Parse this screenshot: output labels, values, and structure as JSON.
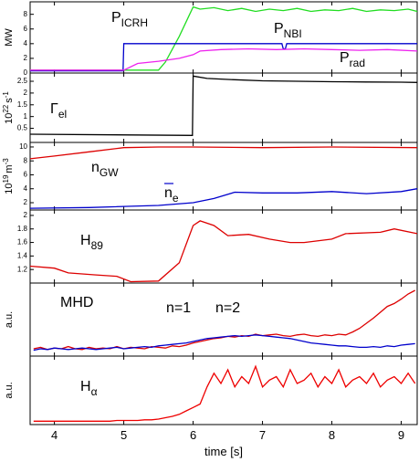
{
  "chart_data": [
    {
      "type": "line",
      "xlim": [
        3.65,
        9.23
      ],
      "ylim": [
        0,
        9.7
      ],
      "yticks": [
        0,
        2,
        4,
        6,
        8
      ],
      "ylabel": [
        {
          "text": "MW"
        }
      ],
      "series": [
        {
          "name": "P",
          "name_sub": "ICRH",
          "color": "#22dd22",
          "x": [
            3.65,
            5.5,
            5.6,
            5.8,
            6.0,
            6.1,
            6.3,
            6.5,
            6.7,
            6.9,
            7.1,
            7.3,
            7.5,
            7.7,
            7.9,
            8.1,
            8.3,
            8.5,
            8.7,
            8.9,
            9.1,
            9.23
          ],
          "values": [
            0.4,
            0.4,
            1.5,
            5,
            9.0,
            8.7,
            8.9,
            8.5,
            8.8,
            8.4,
            8.7,
            8.5,
            8.8,
            8.4,
            8.6,
            8.5,
            8.8,
            8.4,
            8.6,
            8.5,
            8.7,
            8.4
          ]
        },
        {
          "name": "P",
          "name_sub": "NBI",
          "color": "#0000cc",
          "x": [
            3.65,
            4.99,
            5.0,
            7.28,
            7.3,
            7.33,
            7.35,
            9.23
          ],
          "values": [
            0.3,
            0.3,
            4,
            4,
            3.3,
            3.3,
            4,
            4
          ]
        },
        {
          "name": "P",
          "name_sub": "rad",
          "color": "#ee22ee",
          "x": [
            3.65,
            5.0,
            5.2,
            5.5,
            5.8,
            6.0,
            6.1,
            6.4,
            6.8,
            7.2,
            7.6,
            8.0,
            8.4,
            8.8,
            9.23
          ],
          "values": [
            0.4,
            0.4,
            1.3,
            1.6,
            2.0,
            2.5,
            3.0,
            3.2,
            3.3,
            3.2,
            3.3,
            3.2,
            3.1,
            3.2,
            3.0
          ]
        }
      ]
    },
    {
      "type": "line",
      "xlim": [
        3.65,
        9.23
      ],
      "ylim": [
        -0.1,
        2.85
      ],
      "yticks": [
        0.5,
        1,
        1.5,
        2,
        2.5
      ],
      "ylabel": [
        {
          "text": "10"
        },
        {
          "text": "22",
          "shift": "sup"
        },
        {
          "text": "s"
        },
        {
          "text": "-1",
          "shift": "sup"
        }
      ],
      "series": [
        {
          "name": "Γ",
          "name_sub": "el",
          "color": "#000000",
          "x": [
            3.65,
            5.99,
            6.0,
            6.2,
            6.5,
            7.0,
            7.5,
            8.0,
            8.5,
            9.0,
            9.23
          ],
          "values": [
            0.25,
            0.2,
            2.72,
            2.62,
            2.58,
            2.52,
            2.5,
            2.48,
            2.47,
            2.46,
            2.45
          ]
        }
      ]
    },
    {
      "type": "line",
      "xlim": [
        3.65,
        9.23
      ],
      "ylim": [
        0.95,
        10.65
      ],
      "yticks": [
        2,
        4,
        6,
        8,
        10
      ],
      "ylabel": [
        {
          "text": "10"
        },
        {
          "text": "19",
          "shift": "sup"
        },
        {
          "text": "m"
        },
        {
          "text": "-3",
          "shift": "sup"
        }
      ],
      "series": [
        {
          "name": "n",
          "name_sub": "GW",
          "color": "#dd0000",
          "x": [
            3.65,
            4.0,
            4.5,
            5.0,
            5.5,
            6.0,
            7.0,
            8.0,
            9.23
          ],
          "values": [
            8.3,
            8.7,
            9.3,
            9.9,
            10.0,
            10.0,
            9.9,
            10.0,
            9.9
          ]
        },
        {
          "name": "n",
          "name_sub": "e",
          "overline": true,
          "color": "#0000cc",
          "x": [
            3.65,
            4.5,
            5.5,
            6.0,
            6.3,
            6.6,
            7.0,
            7.5,
            8.0,
            8.5,
            9.0,
            9.23
          ],
          "values": [
            1.2,
            1.3,
            1.6,
            2.0,
            2.6,
            3.5,
            3.4,
            3.4,
            3.6,
            3.3,
            3.6,
            4.0
          ]
        }
      ]
    },
    {
      "type": "line",
      "xlim": [
        3.65,
        9.23
      ],
      "ylim": [
        1.0,
        2.08
      ],
      "yticks": [
        1.2,
        1.4,
        1.6,
        1.8,
        2
      ],
      "series": [
        {
          "name": "H",
          "name_sub": "89",
          "color": "#dd0000",
          "x": [
            3.65,
            4.0,
            4.2,
            4.6,
            4.9,
            5.1,
            5.5,
            5.8,
            6.0,
            6.1,
            6.3,
            6.5,
            6.8,
            7.1,
            7.4,
            7.6,
            8.0,
            8.2,
            8.7,
            8.9,
            9.23
          ],
          "values": [
            1.25,
            1.22,
            1.15,
            1.12,
            1.1,
            1.02,
            1.03,
            1.3,
            1.85,
            1.92,
            1.85,
            1.7,
            1.72,
            1.65,
            1.6,
            1.6,
            1.65,
            1.73,
            1.75,
            1.8,
            1.73
          ]
        }
      ]
    },
    {
      "type": "line",
      "xlim": [
        3.65,
        9.23
      ],
      "ylim": [
        0,
        1
      ],
      "annotation": "MHD",
      "ylabel": [
        {
          "text": "a.u."
        }
      ],
      "series": [
        {
          "name": "n=1",
          "color": "#dd0000",
          "x": [
            3.7,
            3.8,
            3.9,
            4,
            4.1,
            4.2,
            4.3,
            4.4,
            4.5,
            4.6,
            4.7,
            4.8,
            4.9,
            5,
            5.1,
            5.2,
            5.3,
            5.4,
            5.5,
            5.6,
            5.7,
            5.8,
            5.9,
            6,
            6.1,
            6.2,
            6.3,
            6.4,
            6.5,
            6.6,
            6.7,
            6.8,
            6.9,
            7,
            7.1,
            7.2,
            7.3,
            7.4,
            7.5,
            7.6,
            7.7,
            7.8,
            7.9,
            8,
            8.1,
            8.2,
            8.3,
            8.4,
            8.5,
            8.6,
            8.7,
            8.8,
            8.9,
            9,
            9.1,
            9.2
          ],
          "values": [
            0.1,
            0.12,
            0.09,
            0.11,
            0.1,
            0.13,
            0.1,
            0.09,
            0.12,
            0.1,
            0.11,
            0.1,
            0.13,
            0.1,
            0.12,
            0.11,
            0.1,
            0.13,
            0.12,
            0.11,
            0.14,
            0.13,
            0.15,
            0.18,
            0.2,
            0.22,
            0.24,
            0.25,
            0.27,
            0.26,
            0.28,
            0.27,
            0.3,
            0.28,
            0.29,
            0.3,
            0.28,
            0.27,
            0.29,
            0.3,
            0.28,
            0.27,
            0.29,
            0.28,
            0.3,
            0.29,
            0.33,
            0.38,
            0.45,
            0.52,
            0.6,
            0.68,
            0.72,
            0.78,
            0.85,
            0.9
          ]
        },
        {
          "name": "n=2",
          "color": "#0000cc",
          "x": [
            3.7,
            3.8,
            3.9,
            4,
            4.1,
            4.2,
            4.3,
            4.4,
            4.5,
            4.6,
            4.7,
            4.8,
            4.9,
            5,
            5.1,
            5.2,
            5.3,
            5.4,
            5.5,
            5.6,
            5.7,
            5.8,
            5.9,
            6,
            6.1,
            6.2,
            6.3,
            6.4,
            6.5,
            6.6,
            6.7,
            6.8,
            6.9,
            7,
            7.1,
            7.2,
            7.3,
            7.4,
            7.5,
            7.6,
            7.7,
            7.8,
            7.9,
            8,
            8.1,
            8.2,
            8.3,
            8.4,
            8.5,
            8.6,
            8.7,
            8.8,
            8.9,
            9,
            9.1,
            9.2
          ],
          "values": [
            0.08,
            0.1,
            0.09,
            0.11,
            0.1,
            0.09,
            0.1,
            0.11,
            0.1,
            0.09,
            0.1,
            0.11,
            0.12,
            0.1,
            0.11,
            0.12,
            0.13,
            0.12,
            0.14,
            0.15,
            0.16,
            0.17,
            0.18,
            0.2,
            0.22,
            0.24,
            0.25,
            0.26,
            0.27,
            0.28,
            0.27,
            0.28,
            0.29,
            0.28,
            0.27,
            0.26,
            0.25,
            0.24,
            0.22,
            0.2,
            0.18,
            0.17,
            0.16,
            0.15,
            0.14,
            0.14,
            0.13,
            0.12,
            0.12,
            0.13,
            0.12,
            0.14,
            0.13,
            0.15,
            0.16,
            0.17
          ]
        }
      ]
    },
    {
      "type": "line",
      "xlim": [
        3.65,
        9.23
      ],
      "ylim": [
        0,
        1
      ],
      "xticks": [
        4,
        5,
        6,
        7,
        8,
        9
      ],
      "xlabel": "time [s]",
      "ylabel": [
        {
          "text": "a.u."
        }
      ],
      "series": [
        {
          "name": "H",
          "name_sub": "α",
          "color": "#ee0000",
          "x": [
            3.7,
            3.8,
            3.9,
            4,
            4.1,
            4.2,
            4.3,
            4.4,
            4.5,
            4.6,
            4.7,
            4.8,
            4.9,
            5,
            5.1,
            5.2,
            5.3,
            5.4,
            5.5,
            5.6,
            5.7,
            5.8,
            5.9,
            6,
            6.1,
            6.2,
            6.3,
            6.4,
            6.5,
            6.6,
            6.7,
            6.8,
            6.9,
            7,
            7.1,
            7.2,
            7.3,
            7.4,
            7.5,
            7.6,
            7.7,
            7.8,
            7.9,
            8,
            8.1,
            8.2,
            8.3,
            8.4,
            8.5,
            8.6,
            8.7,
            8.8,
            8.9,
            9,
            9.1,
            9.2
          ],
          "values": [
            0.05,
            0.05,
            0.05,
            0.05,
            0.05,
            0.05,
            0.05,
            0.05,
            0.05,
            0.05,
            0.05,
            0.05,
            0.06,
            0.06,
            0.06,
            0.06,
            0.07,
            0.07,
            0.08,
            0.1,
            0.12,
            0.15,
            0.2,
            0.25,
            0.3,
            0.55,
            0.75,
            0.6,
            0.8,
            0.55,
            0.7,
            0.6,
            0.85,
            0.55,
            0.65,
            0.7,
            0.55,
            0.8,
            0.6,
            0.65,
            0.75,
            0.55,
            0.7,
            0.6,
            0.8,
            0.55,
            0.65,
            0.7,
            0.6,
            0.75,
            0.55,
            0.65,
            0.7,
            0.6,
            0.75,
            0.6
          ]
        }
      ]
    }
  ]
}
